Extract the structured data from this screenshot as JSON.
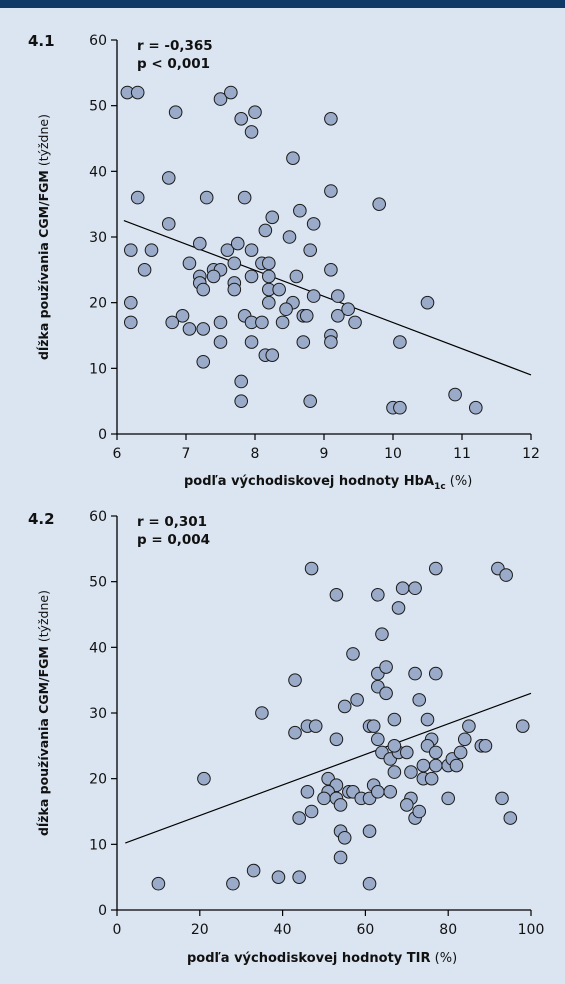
{
  "chart_data": [
    {
      "type": "scatter",
      "panel_label": "4.1",
      "stats": [
        "r = -0,365",
        "p < 0,001"
      ],
      "xlabel": {
        "bold": "podľa východiskovej hodnoty HbA",
        "sub": "1c",
        "unit": " (%)"
      },
      "ylabel": {
        "bold": "dĺžka používania CGM/FGM",
        "unit": " (týždne)"
      },
      "xlim": [
        6,
        12
      ],
      "ylim": [
        0,
        60
      ],
      "xticks": [
        6,
        7,
        8,
        9,
        10,
        11,
        12
      ],
      "yticks": [
        0,
        10,
        20,
        30,
        40,
        50,
        60
      ],
      "trendline": [
        [
          6.1,
          32.5
        ],
        [
          12,
          9
        ]
      ],
      "points": [
        [
          6.15,
          52
        ],
        [
          6.3,
          52
        ],
        [
          6.85,
          49
        ],
        [
          7.5,
          51
        ],
        [
          7.65,
          52
        ],
        [
          7.8,
          48
        ],
        [
          7.95,
          46
        ],
        [
          8.0,
          49
        ],
        [
          9.1,
          48
        ],
        [
          8.55,
          42
        ],
        [
          9.1,
          37
        ],
        [
          6.75,
          39
        ],
        [
          6.3,
          36
        ],
        [
          7.3,
          36
        ],
        [
          7.85,
          36
        ],
        [
          9.8,
          35
        ],
        [
          8.65,
          34
        ],
        [
          8.25,
          33
        ],
        [
          6.75,
          32
        ],
        [
          8.85,
          32
        ],
        [
          8.15,
          31
        ],
        [
          8.5,
          30
        ],
        [
          7.6,
          28
        ],
        [
          7.75,
          29
        ],
        [
          7.95,
          28
        ],
        [
          6.2,
          28
        ],
        [
          6.5,
          28
        ],
        [
          7.2,
          29
        ],
        [
          8.8,
          28
        ],
        [
          8.6,
          24
        ],
        [
          7.05,
          26
        ],
        [
          7.7,
          26
        ],
        [
          7.95,
          24
        ],
        [
          8.1,
          26
        ],
        [
          8.2,
          26
        ],
        [
          6.4,
          25
        ],
        [
          7.4,
          25
        ],
        [
          7.5,
          25
        ],
        [
          9.1,
          25
        ],
        [
          7.2,
          24
        ],
        [
          7.4,
          24
        ],
        [
          8.2,
          24
        ],
        [
          6.2,
          20
        ],
        [
          7.2,
          23
        ],
        [
          7.7,
          23
        ],
        [
          8.2,
          22
        ],
        [
          8.35,
          22
        ],
        [
          7.25,
          22
        ],
        [
          7.7,
          22
        ],
        [
          8.2,
          20
        ],
        [
          8.55,
          20
        ],
        [
          9.2,
          21
        ],
        [
          8.85,
          21
        ],
        [
          10.5,
          20
        ],
        [
          6.95,
          18
        ],
        [
          7.85,
          18
        ],
        [
          7.05,
          16
        ],
        [
          7.25,
          16
        ],
        [
          7.5,
          17
        ],
        [
          6.8,
          17
        ],
        [
          6.2,
          17
        ],
        [
          7.95,
          17
        ],
        [
          8.1,
          17
        ],
        [
          8.4,
          17
        ],
        [
          8.7,
          18
        ],
        [
          8.75,
          18
        ],
        [
          9.2,
          18
        ],
        [
          9.35,
          19
        ],
        [
          9.45,
          17
        ],
        [
          8.45,
          19
        ],
        [
          9.1,
          15
        ],
        [
          9.1,
          14
        ],
        [
          7.5,
          14
        ],
        [
          7.95,
          14
        ],
        [
          8.7,
          14
        ],
        [
          10.1,
          14
        ],
        [
          7.25,
          11
        ],
        [
          8.15,
          12
        ],
        [
          8.25,
          12
        ],
        [
          7.8,
          8
        ],
        [
          7.8,
          5
        ],
        [
          8.8,
          5
        ],
        [
          10.0,
          4
        ],
        [
          10.1,
          4
        ],
        [
          10.9,
          6
        ],
        [
          11.2,
          4
        ]
      ]
    },
    {
      "type": "scatter",
      "panel_label": "4.2",
      "stats": [
        "r = 0,301",
        "p = 0,004"
      ],
      "xlabel": {
        "bold": "podľa východiskovej hodnoty TIR",
        "sub": "",
        "unit": " (%)"
      },
      "ylabel": {
        "bold": "dĺžka používania CGM/FGM",
        "unit": " (týždne)"
      },
      "xlim": [
        0,
        100
      ],
      "ylim": [
        0,
        60
      ],
      "xticks": [
        0,
        20,
        40,
        60,
        80,
        100
      ],
      "yticks": [
        0,
        10,
        20,
        30,
        40,
        50,
        60
      ],
      "trendline": [
        [
          2,
          10.2
        ],
        [
          100,
          33
        ]
      ],
      "points": [
        [
          47,
          52
        ],
        [
          53,
          48
        ],
        [
          63,
          48
        ],
        [
          69,
          49
        ],
        [
          72,
          49
        ],
        [
          77,
          52
        ],
        [
          92,
          52
        ],
        [
          94,
          51
        ],
        [
          68,
          46
        ],
        [
          64,
          42
        ],
        [
          57,
          39
        ],
        [
          43,
          35
        ],
        [
          72,
          36
        ],
        [
          77,
          36
        ],
        [
          63,
          36
        ],
        [
          65,
          37
        ],
        [
          35,
          30
        ],
        [
          58,
          32
        ],
        [
          63,
          34
        ],
        [
          65,
          33
        ],
        [
          73,
          32
        ],
        [
          46,
          28
        ],
        [
          48,
          28
        ],
        [
          43,
          27
        ],
        [
          53,
          26
        ],
        [
          55,
          31
        ],
        [
          61,
          28
        ],
        [
          62,
          28
        ],
        [
          67,
          29
        ],
        [
          75,
          29
        ],
        [
          63,
          26
        ],
        [
          64,
          24
        ],
        [
          66,
          23
        ],
        [
          68,
          24
        ],
        [
          67,
          25
        ],
        [
          70,
          24
        ],
        [
          76,
          26
        ],
        [
          75,
          25
        ],
        [
          77,
          24
        ],
        [
          77,
          22
        ],
        [
          74,
          22
        ],
        [
          80,
          22
        ],
        [
          81,
          23
        ],
        [
          82,
          22
        ],
        [
          83,
          24
        ],
        [
          84,
          26
        ],
        [
          85,
          28
        ],
        [
          88,
          25
        ],
        [
          89,
          25
        ],
        [
          98,
          28
        ],
        [
          21,
          20
        ],
        [
          51,
          20
        ],
        [
          52,
          18
        ],
        [
          53,
          19
        ],
        [
          51,
          18
        ],
        [
          50,
          17
        ],
        [
          53,
          17
        ],
        [
          54,
          16
        ],
        [
          56,
          18
        ],
        [
          57,
          18
        ],
        [
          59,
          17
        ],
        [
          61,
          17
        ],
        [
          62,
          19
        ],
        [
          63,
          18
        ],
        [
          66,
          18
        ],
        [
          67,
          21
        ],
        [
          71,
          21
        ],
        [
          74,
          20
        ],
        [
          76,
          20
        ],
        [
          80,
          17
        ],
        [
          71,
          17
        ],
        [
          70,
          16
        ],
        [
          72,
          14
        ],
        [
          73,
          15
        ],
        [
          54,
          12
        ],
        [
          55,
          11
        ],
        [
          54,
          8
        ],
        [
          61,
          12
        ],
        [
          44,
          14
        ],
        [
          47,
          15
        ],
        [
          46,
          18
        ],
        [
          95,
          14
        ],
        [
          93,
          17
        ],
        [
          10,
          4
        ],
        [
          28,
          4
        ],
        [
          33,
          6
        ],
        [
          39,
          5
        ],
        [
          44,
          5
        ],
        [
          61,
          4
        ]
      ]
    }
  ]
}
